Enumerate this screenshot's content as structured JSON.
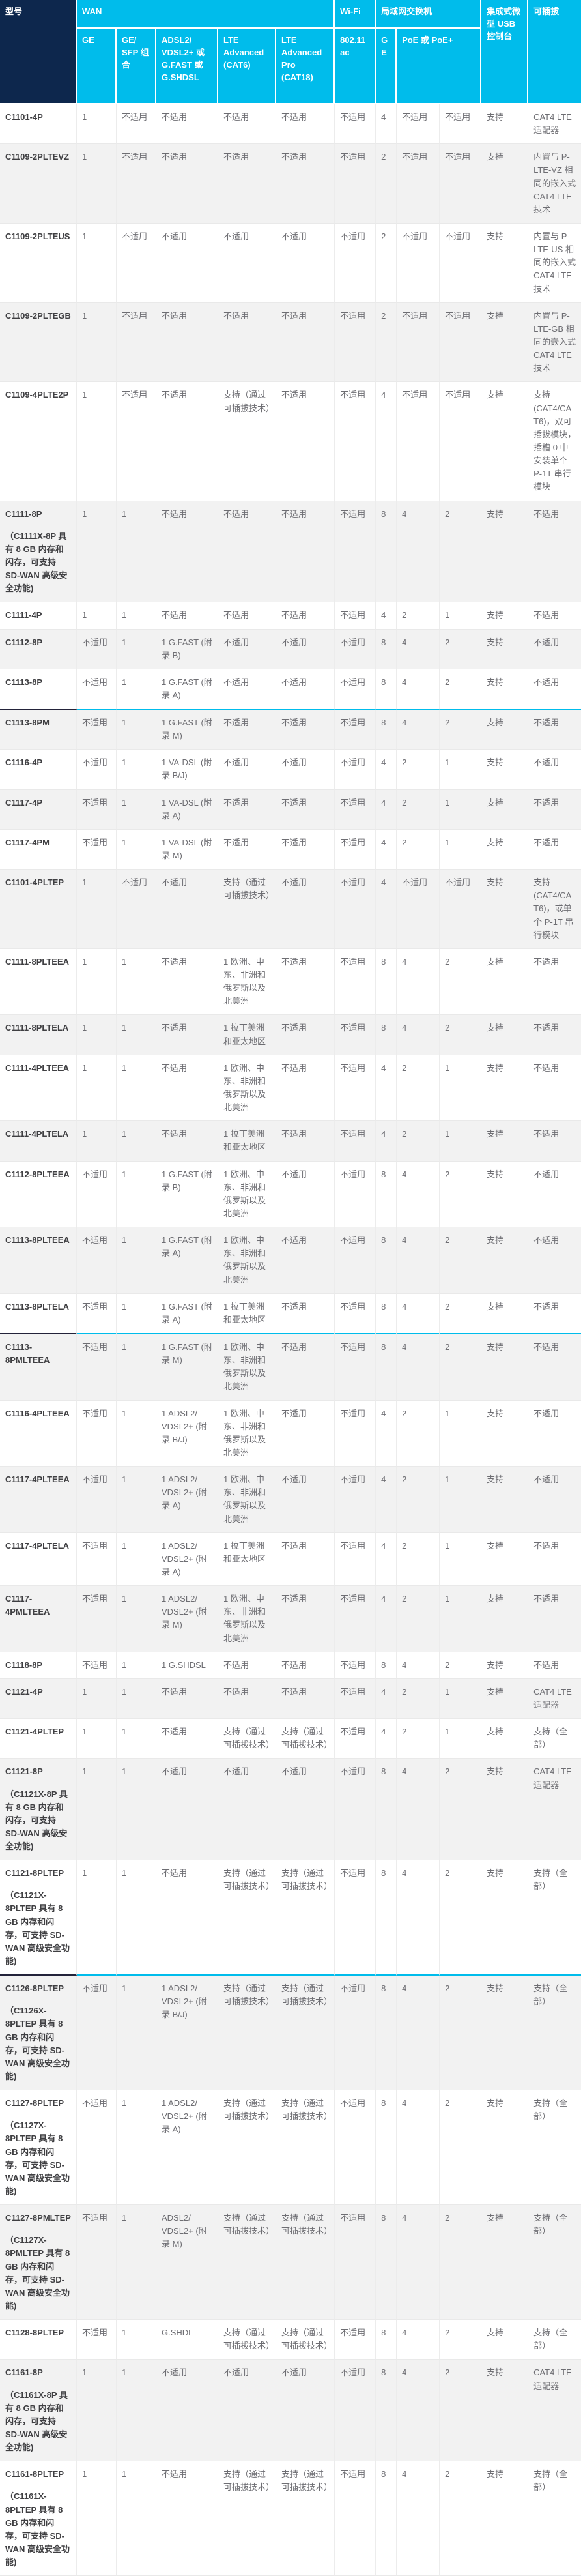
{
  "table": {
    "header": {
      "col_model": "型号",
      "group_wan": "WAN",
      "group_wifi": "Wi-Fi",
      "group_lan": "局域网交换机",
      "group_usb_console": "集成式微型 USB 控制台",
      "group_pluggable": "可插拔",
      "sub": {
        "ge": "GE",
        "ge_sfp_combo": "GE/ SFP 组合",
        "adsl_vdsl": "ADSL2/ VDSL2+ 或 G.FAST 或 G.SHDSL",
        "lte_advanced_cat6": "LTE Advanced (CAT6)",
        "lte_advanced_pro_cat18": "LTE Advanced Pro (CAT18)",
        "wifi_80211ac": "802.11 ac",
        "lan_ge": "GE",
        "lan_poe": "PoE 或 PoE+"
      }
    },
    "column_keys": [
      "ge",
      "ge-sfp-combo",
      "adsl-vdsl",
      "lte-advanced-cat6",
      "lte-advanced-pro-cat18",
      "wifi-80211ac",
      "lan-ge",
      "lan-poe",
      "lan-poe-plus",
      "usb-console",
      "pluggable"
    ],
    "na_label": "不适用",
    "supported_label": "支持",
    "rows": [
      {
        "model": "C1101-4P",
        "cells": [
          "1",
          "不适用",
          "不适用",
          "不适用",
          "不适用",
          "不适用",
          "4",
          "不适用",
          "不适用",
          "支持",
          "CAT4 LTE 适配器"
        ]
      },
      {
        "model": "C1109-2PLTEVZ",
        "cells": [
          "1",
          "不适用",
          "不适用",
          "不适用",
          "不适用",
          "不适用",
          "2",
          "不适用",
          "不适用",
          "支持",
          "内置与 P-LTE-VZ 相同的嵌入式 CAT4 LTE 技术"
        ]
      },
      {
        "model": "C1109-2PLTEUS",
        "cells": [
          "1",
          "不适用",
          "不适用",
          "不适用",
          "不适用",
          "不适用",
          "2",
          "不适用",
          "不适用",
          "支持",
          "内置与 P-LTE-US 相同的嵌入式 CAT4 LTE 技术"
        ]
      },
      {
        "model": "C1109-2PLTEGB",
        "cells": [
          "1",
          "不适用",
          "不适用",
          "不适用",
          "不适用",
          "不适用",
          "2",
          "不适用",
          "不适用",
          "支持",
          "内置与 P-LTE-GB 相同的嵌入式 CAT4 LTE 技术"
        ]
      },
      {
        "model": "C1109-4PLTE2P",
        "cells": [
          "1",
          "不适用",
          "不适用",
          "支持（通过可插拔技术）",
          "不适用",
          "不适用",
          "4",
          "不适用",
          "不适用",
          "支持",
          "支持 (CAT4/CAT6)，双可插拔模块，插槽 0 中安装单个 P-1T 串行模块"
        ]
      },
      {
        "model": "C1111-8P",
        "note": "（C1111X-8P 具有 8 GB 内存和闪存，可支持 SD-WAN 高级安全功能)",
        "cells": [
          "1",
          "1",
          "不适用",
          "不适用",
          "不适用",
          "不适用",
          "8",
          "4",
          "2",
          "支持",
          "不适用"
        ]
      },
      {
        "model": "C1111-4P",
        "cells": [
          "1",
          "1",
          "不适用",
          "不适用",
          "不适用",
          "不适用",
          "4",
          "2",
          "1",
          "支持",
          "不适用"
        ]
      },
      {
        "model": "C1112-8P",
        "cells": [
          "不适用",
          "1",
          "1 G.FAST (附录 B)",
          "不适用",
          "不适用",
          "不适用",
          "8",
          "4",
          "2",
          "支持",
          "不适用"
        ]
      },
      {
        "model": "C1113-8P",
        "divider": true,
        "cells": [
          "不适用",
          "1",
          "1 G.FAST (附录 A)",
          "不适用",
          "不适用",
          "不适用",
          "8",
          "4",
          "2",
          "支持",
          "不适用"
        ]
      },
      {
        "model": "C1113-8PM",
        "cells": [
          "不适用",
          "1",
          "1 G.FAST (附录 M)",
          "不适用",
          "不适用",
          "不适用",
          "8",
          "4",
          "2",
          "支持",
          "不适用"
        ]
      },
      {
        "model": "C1116-4P",
        "cells": [
          "不适用",
          "1",
          "1 VA-DSL (附录 B/J)",
          "不适用",
          "不适用",
          "不适用",
          "4",
          "2",
          "1",
          "支持",
          "不适用"
        ]
      },
      {
        "model": "C1117-4P",
        "cells": [
          "不适用",
          "1",
          "1 VA-DSL (附录 A)",
          "不适用",
          "不适用",
          "不适用",
          "4",
          "2",
          "1",
          "支持",
          "不适用"
        ]
      },
      {
        "model": "C1117-4PM",
        "cells": [
          "不适用",
          "1",
          "1 VA-DSL (附录 M)",
          "不适用",
          "不适用",
          "不适用",
          "4",
          "2",
          "1",
          "支持",
          "不适用"
        ]
      },
      {
        "model": "C1101-4PLTEP",
        "cells": [
          "1",
          "不适用",
          "不适用",
          "支持（通过可插拔技术）",
          "不适用",
          "不适用",
          "4",
          "不适用",
          "不适用",
          "支持",
          "支持 (CAT4/CAT6)，或单个 P-1T 串行模块"
        ]
      },
      {
        "model": "C1111-8PLTEEA",
        "cells": [
          "1",
          "1",
          "不适用",
          "1 欧洲、中东、非洲和俄罗斯以及北美洲",
          "不适用",
          "不适用",
          "8",
          "4",
          "2",
          "支持",
          "不适用"
        ]
      },
      {
        "model": "C1111-8PLTELA",
        "cells": [
          "1",
          "1",
          "不适用",
          "1 拉丁美洲和亚太地区",
          "不适用",
          "不适用",
          "8",
          "4",
          "2",
          "支持",
          "不适用"
        ]
      },
      {
        "model": "C1111-4PLTEEA",
        "cells": [
          "1",
          "1",
          "不适用",
          "1 欧洲、中东、非洲和俄罗斯以及北美洲",
          "不适用",
          "不适用",
          "4",
          "2",
          "1",
          "支持",
          "不适用"
        ]
      },
      {
        "model": "C1111-4PLTELA",
        "cells": [
          "1",
          "1",
          "不适用",
          "1 拉丁美洲和亚太地区",
          "不适用",
          "不适用",
          "4",
          "2",
          "1",
          "支持",
          "不适用"
        ]
      },
      {
        "model": "C1112-8PLTEEA",
        "cells": [
          "不适用",
          "1",
          "1 G.FAST (附录 B)",
          "1 欧洲、中东、非洲和俄罗斯以及北美洲",
          "不适用",
          "不适用",
          "8",
          "4",
          "2",
          "支持",
          "不适用"
        ]
      },
      {
        "model": "C1113-8PLTEEA",
        "cells": [
          "不适用",
          "1",
          "1 G.FAST (附录 A)",
          "1 欧洲、中东、非洲和俄罗斯以及北美洲",
          "不适用",
          "不适用",
          "8",
          "4",
          "2",
          "支持",
          "不适用"
        ]
      },
      {
        "model": "C1113-8PLTELA",
        "divider": true,
        "cells": [
          "不适用",
          "1",
          "1 G.FAST (附录 A)",
          "1 拉丁美洲和亚太地区",
          "不适用",
          "不适用",
          "8",
          "4",
          "2",
          "支持",
          "不适用"
        ]
      },
      {
        "model": "C1113-8PMLTEEA",
        "cells": [
          "不适用",
          "1",
          "1 G.FAST (附录 M)",
          "1 欧洲、中东、非洲和俄罗斯以及北美洲",
          "不适用",
          "不适用",
          "8",
          "4",
          "2",
          "支持",
          "不适用"
        ]
      },
      {
        "model": "C1116-4PLTEEA",
        "cells": [
          "不适用",
          "1",
          "1 ADSL2/ VDSL2+ (附录 B/J)",
          "1 欧洲、中东、非洲和俄罗斯以及北美洲",
          "不适用",
          "不适用",
          "4",
          "2",
          "1",
          "支持",
          "不适用"
        ]
      },
      {
        "model": "C1117-4PLTEEA",
        "cells": [
          "不适用",
          "1",
          "1 ADSL2/ VDSL2+ (附录 A)",
          "1 欧洲、中东、非洲和俄罗斯以及北美洲",
          "不适用",
          "不适用",
          "4",
          "2",
          "1",
          "支持",
          "不适用"
        ]
      },
      {
        "model": "C1117-4PLTELA",
        "cells": [
          "不适用",
          "1",
          "1 ADSL2/ VDSL2+ (附录 A)",
          "1 拉丁美洲和亚太地区",
          "不适用",
          "不适用",
          "4",
          "2",
          "1",
          "支持",
          "不适用"
        ]
      },
      {
        "model": "C1117-4PMLTEEA",
        "cells": [
          "不适用",
          "1",
          "1 ADSL2/ VDSL2+ (附录 M)",
          "1 欧洲、中东、非洲和俄罗斯以及北美洲",
          "不适用",
          "不适用",
          "4",
          "2",
          "1",
          "支持",
          "不适用"
        ]
      },
      {
        "model": "C1118-8P",
        "cells": [
          "不适用",
          "1",
          "1 G.SHDSL",
          "不适用",
          "不适用",
          "不适用",
          "8",
          "4",
          "2",
          "支持",
          "不适用"
        ]
      },
      {
        "model": "C1121-4P",
        "cells": [
          "1",
          "1",
          "不适用",
          "不适用",
          "不适用",
          "不适用",
          "4",
          "2",
          "1",
          "支持",
          "CAT4 LTE 适配器"
        ]
      },
      {
        "model": "C1121-4PLTEP",
        "cells": [
          "1",
          "1",
          "不适用",
          "支持（通过可插拔技术）",
          "支持（通过可插拔技术）",
          "不适用",
          "4",
          "2",
          "1",
          "支持",
          "支持（全部）"
        ]
      },
      {
        "model": "C1121-8P",
        "note": "（C1121X-8P 具有 8 GB 内存和闪存，可支持 SD-WAN 高级安全功能)",
        "cells": [
          "1",
          "1",
          "不适用",
          "不适用",
          "不适用",
          "不适用",
          "8",
          "4",
          "2",
          "支持",
          "CAT4 LTE 适配器"
        ]
      },
      {
        "model": "C1121-8PLTEP",
        "note": "（C1121X-8PLTEP 具有 8 GB 内存和闪存，可支持 SD-WAN 高级安全功能)",
        "divider": true,
        "cells": [
          "1",
          "1",
          "不适用",
          "支持（通过可插拔技术）",
          "支持（通过可插拔技术）",
          "不适用",
          "8",
          "4",
          "2",
          "支持",
          "支持（全部）"
        ]
      },
      {
        "model": "C1126-8PLTEP",
        "note": "（C1126X-8PLTEP 具有 8 GB 内存和闪存，可支持 SD-WAN 高级安全功能)",
        "cells": [
          "不适用",
          "1",
          "1 ADSL2/ VDSL2+ (附录 B/J)",
          "支持（通过可插拔技术）",
          "支持（通过可插拔技术）",
          "不适用",
          "8",
          "4",
          "2",
          "支持",
          "支持（全部）"
        ]
      },
      {
        "model": "C1127-8PLTEP",
        "note": "（C1127X-8PLTEP 具有 8 GB 内存和闪存，可支持 SD-WAN 高级安全功能)",
        "cells": [
          "不适用",
          "1",
          "1 ADSL2/ VDSL2+ (附录 A)",
          "支持（通过可插拔技术）",
          "支持（通过可插拔技术）",
          "不适用",
          "8",
          "4",
          "2",
          "支持",
          "支持（全部）"
        ]
      },
      {
        "model": "C1127-8PMLTEP",
        "note": "（C1127X-8PMLTEP 具有 8 GB 内存和闪存，可支持 SD-WAN 高级安全功能)",
        "cells": [
          "不适用",
          "1",
          "ADSL2/ VDSL2+ (附录 M)",
          "支持（通过可插拔技术）",
          "支持（通过可插拔技术）",
          "不适用",
          "8",
          "4",
          "2",
          "支持",
          "支持（全部）"
        ]
      },
      {
        "model": "C1128-8PLTEP",
        "cells": [
          "不适用",
          "1",
          "G.SHDL",
          "支持（通过可插拔技术）",
          "支持（通过可插拔技术）",
          "不适用",
          "8",
          "4",
          "2",
          "支持",
          "支持（全部）"
        ]
      },
      {
        "model": "C1161-8P",
        "note": "（C1161X-8P 具有 8 GB 内存和闪存，可支持 SD-WAN 高级安全功能)",
        "cells": [
          "1",
          "1",
          "不适用",
          "不适用",
          "不适用",
          "不适用",
          "8",
          "4",
          "2",
          "支持",
          "CAT4 LTE 适配器"
        ]
      },
      {
        "model": "C1161-8PLTEP",
        "note": "（C1161X-8PLTEP 具有 8 GB 内存和闪存，可支持 SD-WAN 高级安全功能)",
        "cells": [
          "1",
          "1",
          "不适用",
          "支持（通过可插拔技术）",
          "支持（通过可插拔技术）",
          "不适用",
          "8",
          "4",
          "2",
          "支持",
          "支持（全部）"
        ]
      }
    ],
    "colors": {
      "header_accent": "#00bceb",
      "header_model_bg": "#0d274d",
      "alt_row_bg": "#f2f2f2",
      "divider_line": "#00bceb"
    }
  }
}
